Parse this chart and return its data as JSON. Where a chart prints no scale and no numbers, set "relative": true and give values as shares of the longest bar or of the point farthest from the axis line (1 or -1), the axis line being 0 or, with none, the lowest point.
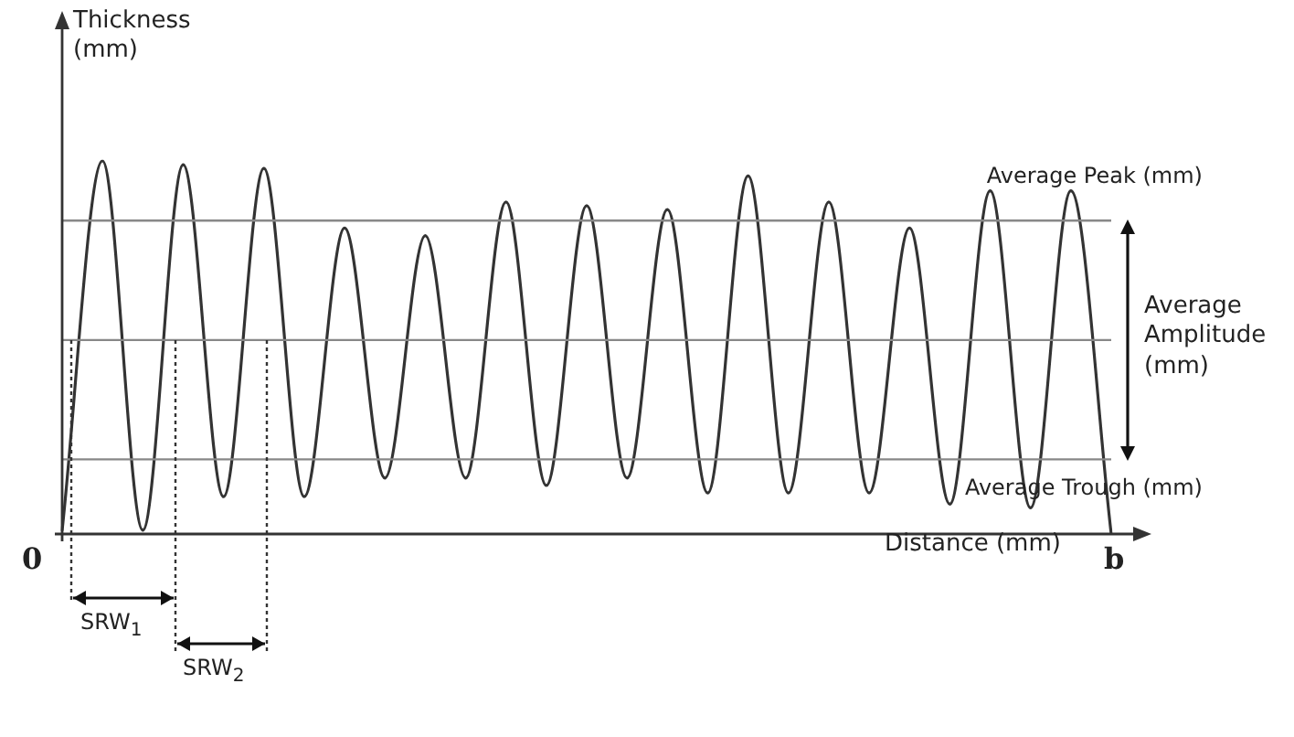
{
  "chart_data": {
    "type": "line",
    "relative": true,
    "xlabel": "Distance (mm)",
    "ylabel": "Thickness (mm)",
    "categories": [
      null,
      null,
      null,
      null,
      null,
      null,
      null,
      null,
      null,
      null,
      null,
      null,
      null,
      null,
      null,
      null,
      null,
      null,
      null,
      null,
      null,
      null,
      null,
      null,
      null,
      null,
      null
    ],
    "series": [
      {
        "color": "#333333",
        "values": [
          0.01,
          1.0,
          0.01,
          0.99,
          0.1,
          0.98,
          0.1,
          0.82,
          0.15,
          0.8,
          0.15,
          0.89,
          0.13,
          0.88,
          0.15,
          0.87,
          0.11,
          0.96,
          0.11,
          0.89,
          0.11,
          0.82,
          0.08,
          0.92,
          0.07,
          0.92,
          0.0
        ]
      }
    ],
    "ref_lines": [
      {
        "axis": "y",
        "value": 0.84,
        "label": "Average Peak (mm)",
        "color": "#888888"
      },
      {
        "axis": "y",
        "value": 0.52,
        "color": "#888888"
      },
      {
        "axis": "y",
        "value": 0.2,
        "label": "Average Trough (mm)",
        "color": "#888888"
      }
    ],
    "annotations": [
      "Average Amplitude (mm)",
      "0",
      "b",
      "SRW$_{1}$",
      "SRW$_{2}$"
    ],
    "legend": false,
    "marker": "none",
    "line_style": "solid"
  }
}
